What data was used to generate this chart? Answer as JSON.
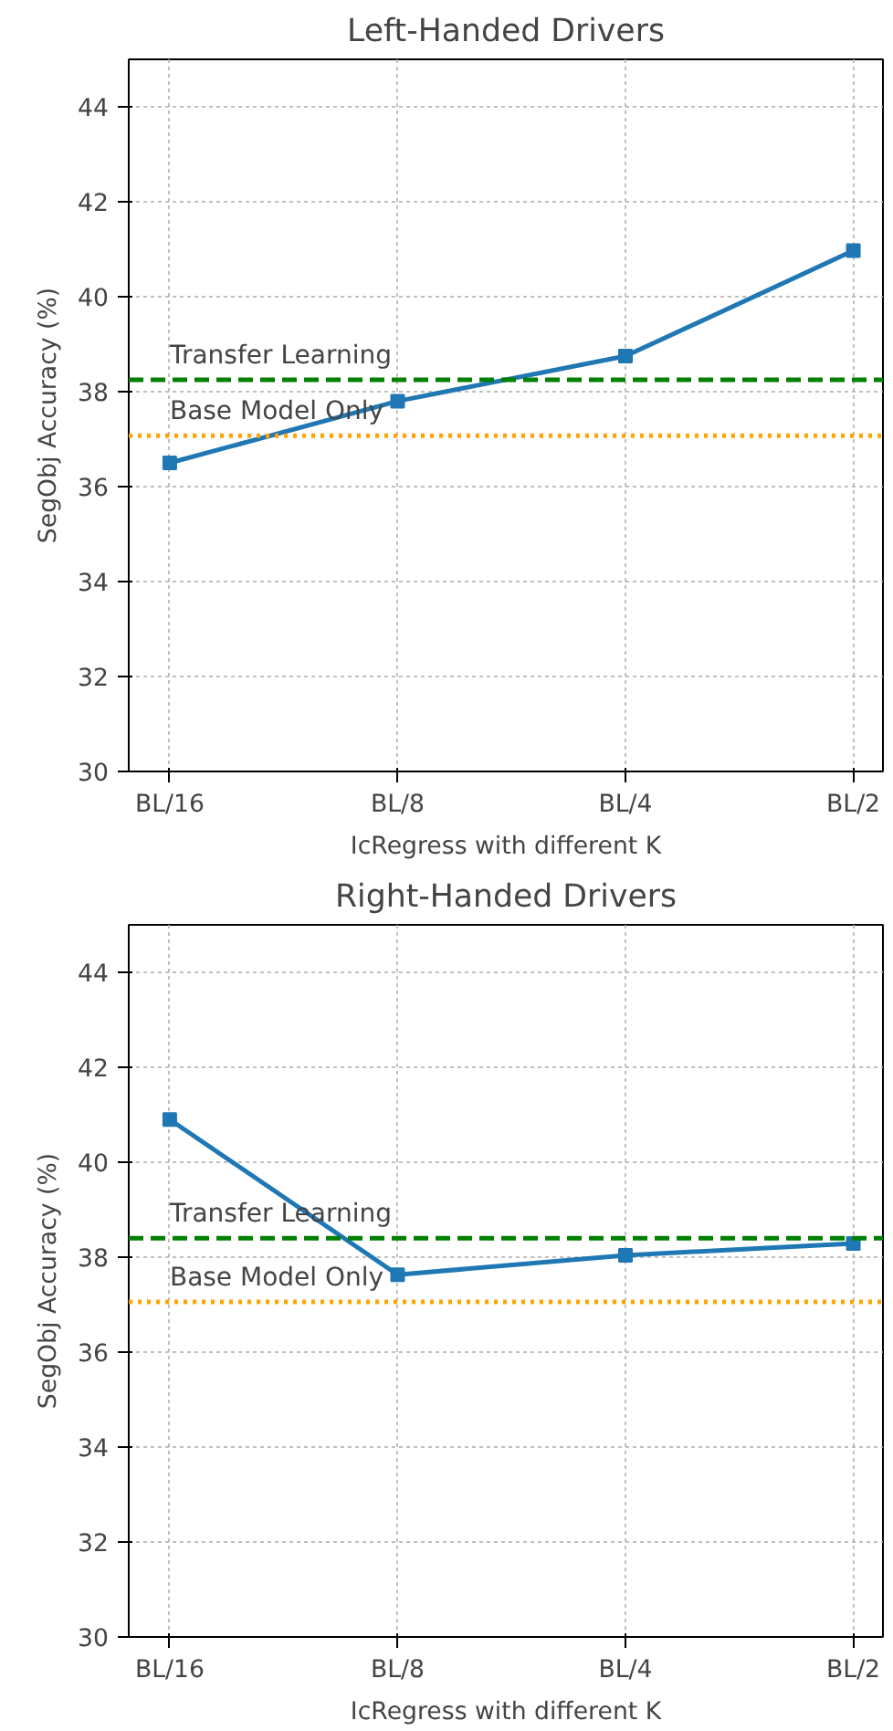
{
  "chart_data": [
    {
      "type": "line",
      "title": "Left-Handed Drivers",
      "xlabel": "IcRegress with different K",
      "ylabel": "SegObj Accuracy (%)",
      "categories": [
        "BL/16",
        "BL/8",
        "BL/4",
        "BL/2"
      ],
      "series": [
        {
          "color": "#1f77b4",
          "values": [
            36.5,
            37.8,
            38.75,
            40.97
          ]
        }
      ],
      "ylim": [
        30,
        45
      ],
      "yticks": [
        30,
        32,
        34,
        36,
        38,
        40,
        42,
        44
      ],
      "grid": true,
      "marker": "square",
      "line_style": "solid",
      "ref_lines": [
        {
          "axis": "y",
          "value": 38.25,
          "label": "Transfer Learning",
          "color": "#008000",
          "line_style": "dashed"
        },
        {
          "axis": "y",
          "value": 37.07,
          "label": "Base Model Only",
          "color": "#ffa500",
          "line_style": "dotted"
        }
      ]
    },
    {
      "type": "line",
      "title": "Right-Handed Drivers",
      "xlabel": "IcRegress with different K",
      "ylabel": "SegObj Accuracy (%)",
      "categories": [
        "BL/16",
        "BL/8",
        "BL/4",
        "BL/2"
      ],
      "series": [
        {
          "color": "#1f77b4",
          "values": [
            40.9,
            37.63,
            38.04,
            38.29
          ]
        }
      ],
      "ylim": [
        30,
        45
      ],
      "yticks": [
        30,
        32,
        34,
        36,
        38,
        40,
        42,
        44
      ],
      "grid": true,
      "marker": "square",
      "line_style": "solid",
      "ref_lines": [
        {
          "axis": "y",
          "value": 38.4,
          "label": "Transfer Learning",
          "color": "#008000",
          "line_style": "dashed"
        },
        {
          "axis": "y",
          "value": 37.06,
          "label": "Base Model Only",
          "color": "#ffa500",
          "line_style": "dotted"
        }
      ]
    }
  ]
}
